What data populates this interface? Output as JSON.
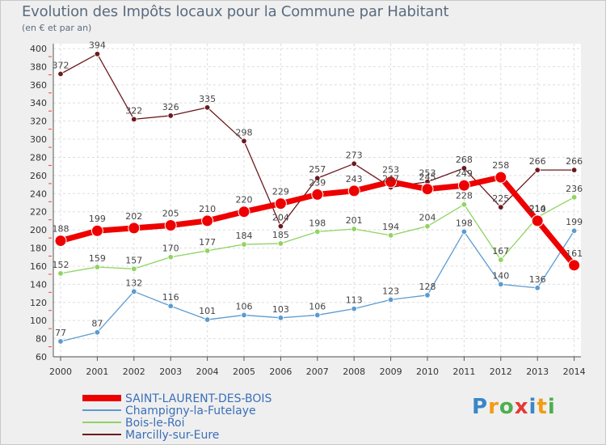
{
  "chart_data": {
    "type": "line",
    "title": "Evolution des Impôts locaux pour la Commune par Habitant",
    "subtitle": "(en € et par an)",
    "categories": [
      "2000",
      "2001",
      "2002",
      "2003",
      "2004",
      "2005",
      "2006",
      "2007",
      "2008",
      "2009",
      "2010",
      "2011",
      "2012",
      "2013",
      "2014"
    ],
    "ylim": [
      60,
      400
    ],
    "yticks": [
      60,
      80,
      100,
      120,
      140,
      160,
      180,
      200,
      220,
      240,
      260,
      280,
      300,
      320,
      340,
      360,
      380,
      400
    ],
    "series": [
      {
        "name": "Marcilly-sur-Eure",
        "color": "#6b1a1e",
        "values": [
          372,
          394,
          322,
          326,
          335,
          298,
          204,
          257,
          273,
          247,
          253,
          268,
          225,
          266,
          266
        ],
        "labels": [
          "372",
          "394",
          "322",
          "326",
          "335",
          "298",
          "204",
          "257",
          "273",
          "247",
          "253",
          "268",
          "225",
          "266",
          "266"
        ]
      },
      {
        "name": "Bois-le-Roi",
        "color": "#8fd460",
        "values": [
          152,
          159,
          157,
          170,
          177,
          184,
          185,
          198,
          201,
          194,
          204,
          228,
          167,
          214,
          236
        ],
        "labels": [
          "152",
          "159",
          "157",
          "170",
          "177",
          "184",
          "185",
          "198",
          "201",
          "194",
          "204",
          "228",
          "167",
          "214",
          "236"
        ]
      },
      {
        "name": "Champigny-la-Futelaye",
        "color": "#5b9bd0",
        "values": [
          77,
          87,
          132,
          116,
          101,
          106,
          103,
          106,
          113,
          123,
          128,
          198,
          140,
          136,
          199
        ],
        "labels": [
          "77",
          "87",
          "132",
          "116",
          "101",
          "106",
          "103",
          "106",
          "113",
          "123",
          "128",
          "198",
          "140",
          "136",
          "199"
        ]
      },
      {
        "name": "SAINT-LAURENT-DES-BOIS",
        "color": "#ee0000",
        "values": [
          188,
          199,
          202,
          205,
          210,
          220,
          229,
          239,
          243,
          253,
          245,
          249,
          258,
          210,
          161
        ],
        "labels": [
          "188",
          "199",
          "202",
          "205",
          "210",
          "220",
          "229",
          "239",
          "243",
          "253",
          "245",
          "249",
          "258",
          "210",
          "161"
        ]
      }
    ],
    "legend": [
      "SAINT-LAURENT-DES-BOIS",
      "Champigny-la-Futelaye",
      "Bois-le-Roi",
      "Marcilly-sur-Eure"
    ]
  },
  "brand": {
    "letters": [
      "P",
      "r",
      "o",
      "x",
      "i",
      "t",
      "i"
    ],
    "colors": [
      "#3a86c8",
      "#f39c12",
      "#4caf50",
      "#e53935",
      "#3a86c8",
      "#f39c12",
      "#4caf50"
    ]
  }
}
